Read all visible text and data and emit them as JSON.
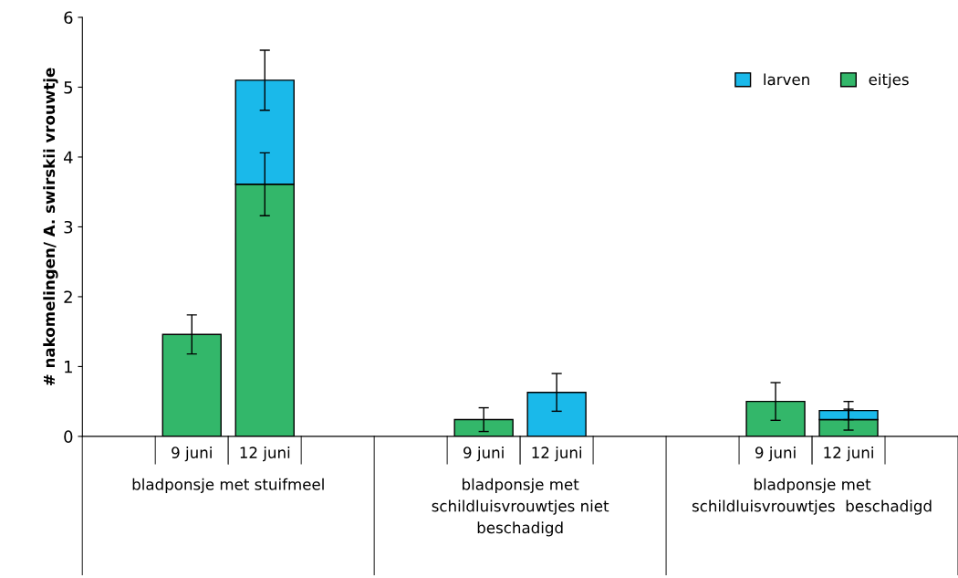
{
  "chart_data": {
    "type": "bar",
    "stacked": true,
    "ylabel": "# nakomelingen/ A. swirskii vrouwtje",
    "categories": [
      null,
      "9 juni",
      "12 juni",
      null,
      null,
      "9 juni",
      "12 juni",
      null,
      null,
      "9 juni",
      "12 juni",
      null
    ],
    "series": [
      {
        "name": "eitjes",
        "color": "#33b76a",
        "values": [
          null,
          1.46,
          3.61,
          null,
          null,
          0.24,
          null,
          null,
          null,
          0.5,
          0.24,
          null
        ],
        "errors": [
          null,
          0.28,
          0.45,
          null,
          null,
          0.17,
          null,
          null,
          null,
          0.27,
          0.15,
          null
        ]
      },
      {
        "name": "larven",
        "color": "#1ab9ea",
        "values": [
          null,
          null,
          1.49,
          null,
          null,
          null,
          0.63,
          null,
          null,
          null,
          0.13,
          null
        ],
        "errors": [
          null,
          null,
          0.43,
          null,
          null,
          null,
          0.27,
          null,
          null,
          null,
          0.13,
          null
        ]
      }
    ],
    "annotations": [
      "bladponsje met stuifmeel",
      "bladponsje met\nschildluisvrouwtjes niet\nbeschadigd",
      "bladponsje met\nschildluisvrouwtjes  beschadigd"
    ],
    "ylim": [
      0,
      6
    ],
    "yticks": [
      0,
      1,
      2,
      3,
      4,
      5,
      6
    ],
    "grid": false,
    "legend": "top right"
  }
}
